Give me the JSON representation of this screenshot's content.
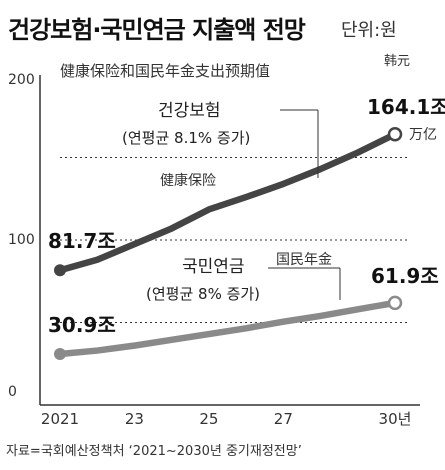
{
  "header": {
    "title": "건강보험·국민연금 지출액 전망",
    "unit": "단위:원",
    "unit_cn": "韩元",
    "subtitle_cn": "健康保险和国民年金支出预期值"
  },
  "source": "자료=국회예산정책처 ‘2021~2030년 중기재정전망’",
  "colors": {
    "health_line": "#444444",
    "pension_line": "#8a8a8a",
    "axis": "#333333",
    "grid": "#333333"
  },
  "chart_data": {
    "type": "line",
    "title": "건강보험·국민연금 지출액 전망",
    "ylabel": "",
    "xlabel": "",
    "ylim": [
      0,
      200
    ],
    "y_ticks": [
      "0",
      "100",
      "200"
    ],
    "y_tick_values": [
      0,
      100,
      200
    ],
    "grid_values": [
      50,
      100,
      150
    ],
    "x": [
      2021,
      2022,
      2023,
      2024,
      2025,
      2026,
      2027,
      2028,
      2029,
      2030
    ],
    "x_ticks": [
      "2021",
      "23",
      "25",
      "27",
      "30년"
    ],
    "x_tick_values": [
      2021,
      2023,
      2025,
      2027,
      2030
    ],
    "series": [
      {
        "name": "건강보험",
        "name_cn": "健康保险",
        "subtitle": "(연평균 8.1% 증가)",
        "values": [
          81.7,
          88.0,
          97.5,
          107.0,
          118.5,
          126.0,
          134.0,
          143.0,
          153.0,
          164.1
        ],
        "start_label": "81.7조",
        "end_label": "164.1조",
        "end_label_cn": "万亿"
      },
      {
        "name": "국민연금",
        "name_cn": "国民年金",
        "subtitle": "(연평균 8% 증가)",
        "values": [
          30.9,
          33.0,
          36.0,
          39.5,
          43.0,
          46.5,
          50.5,
          54.0,
          58.0,
          61.9
        ],
        "start_label": "30.9조",
        "end_label": "61.9조"
      }
    ]
  }
}
